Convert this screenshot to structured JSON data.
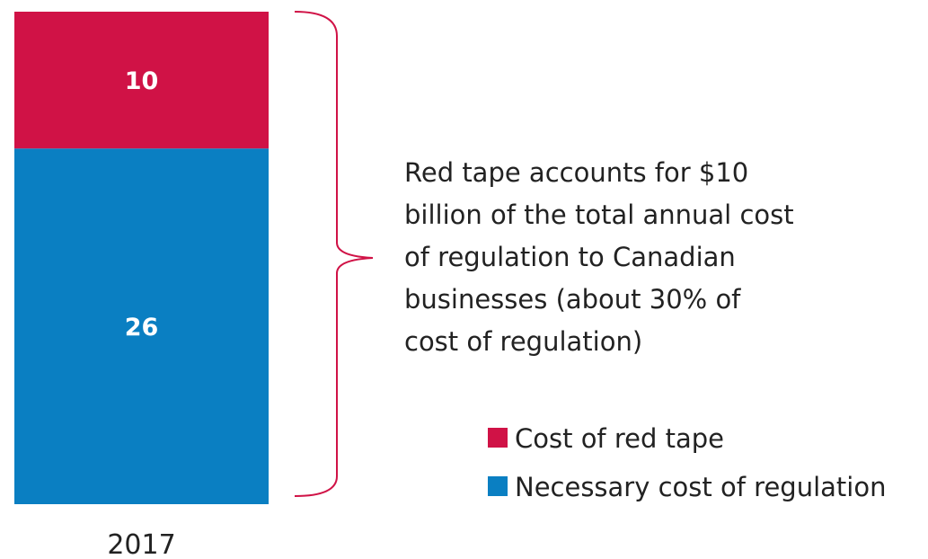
{
  "chart_data": {
    "type": "bar",
    "stacked": true,
    "categories": [
      "2017"
    ],
    "series": [
      {
        "name": "Necessary cost of regulation",
        "values": [
          26
        ],
        "color": "#0a7fc2"
      },
      {
        "name": "Cost of red tape",
        "values": [
          10
        ],
        "color": "#d01246"
      }
    ],
    "ylim": [
      0,
      36
    ],
    "grid": false,
    "legend_position": "bottom-right",
    "annotation": {
      "lines": [
        "Red tape accounts for $10",
        "billion of the total annual cost",
        "of regulation to Canadian",
        "businesses (about 30% of",
        "cost of regulation)"
      ],
      "bracket_color": "#d01246"
    },
    "legend": [
      {
        "label": "Cost of red tape",
        "color": "#d01246"
      },
      {
        "label": "Necessary cost of regulation",
        "color": "#0a7fc2"
      }
    ]
  }
}
